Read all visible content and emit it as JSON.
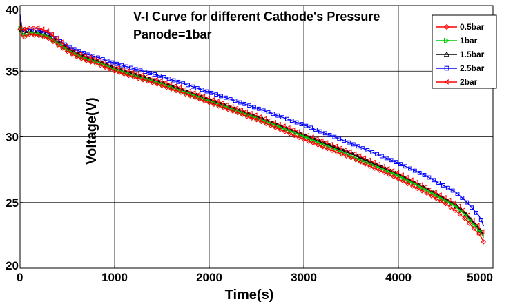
{
  "chart_data": {
    "type": "line",
    "title": "V-I Curve for different Cathode's Pressure",
    "subtitle": "Panode=1bar",
    "xlabel": "Time(s)",
    "ylabel": "Voltage(V)",
    "xlim": [
      0,
      5000
    ],
    "ylim": [
      20,
      40
    ],
    "xticks": [
      "0",
      "1000",
      "2000",
      "3000",
      "4000",
      "5000"
    ],
    "yticks": [
      "20",
      "25",
      "30",
      "35",
      "40"
    ],
    "grid": true,
    "legend_position": "top-right",
    "x": [
      0,
      25,
      50,
      100,
      200,
      300,
      400,
      500,
      600,
      700,
      800,
      1000,
      1500,
      2000,
      2500,
      3000,
      3500,
      4000,
      4300,
      4500,
      4600,
      4700,
      4750,
      4800,
      4850,
      4880,
      4900
    ],
    "series": [
      {
        "name": "0.5bar",
        "color": "#ff0000",
        "marker": "diamond",
        "values": [
          38.2,
          37.6,
          37.6,
          37.8,
          37.7,
          37.5,
          37.0,
          36.5,
          36.1,
          35.8,
          35.6,
          35.0,
          33.9,
          32.6,
          31.3,
          29.8,
          28.4,
          26.8,
          25.7,
          24.9,
          24.4,
          23.8,
          23.4,
          23.0,
          22.6,
          22.3,
          22.0
        ]
      },
      {
        "name": "1bar",
        "color": "#00cc00",
        "marker": "triangle-right",
        "values": [
          38.5,
          37.7,
          37.7,
          37.9,
          37.8,
          37.6,
          37.1,
          36.6,
          36.2,
          35.9,
          35.7,
          35.1,
          34.0,
          32.7,
          31.4,
          30.0,
          28.5,
          27.0,
          25.9,
          25.1,
          24.7,
          24.1,
          23.7,
          23.3,
          22.9,
          22.6,
          22.3
        ]
      },
      {
        "name": "1.5bar",
        "color": "#000000",
        "marker": "triangle-up",
        "values": [
          38.7,
          37.8,
          37.9,
          38.0,
          37.9,
          37.7,
          37.2,
          36.7,
          36.3,
          36.0,
          35.8,
          35.2,
          34.1,
          32.8,
          31.5,
          30.1,
          28.7,
          27.1,
          26.0,
          25.2,
          24.8,
          24.2,
          23.8,
          23.4,
          23.0,
          22.7,
          22.4
        ]
      },
      {
        "name": "2.5bar",
        "color": "#0000ff",
        "marker": "square",
        "values": [
          39.3,
          38.1,
          38.1,
          38.2,
          38.1,
          37.9,
          37.4,
          36.9,
          36.6,
          36.3,
          36.1,
          35.6,
          34.6,
          33.4,
          32.2,
          30.9,
          29.5,
          28.0,
          27.0,
          26.2,
          25.8,
          25.2,
          24.8,
          24.4,
          24.0,
          23.6,
          23.2
        ]
      },
      {
        "name": "2bar",
        "color": "#ff0000",
        "marker": "triangle-left",
        "values": [
          38.9,
          38.2,
          38.2,
          38.3,
          38.3,
          38.0,
          37.4,
          36.8,
          36.4,
          36.1,
          35.9,
          35.3,
          34.2,
          32.9,
          31.6,
          30.2,
          28.8,
          27.2,
          26.1,
          25.3,
          24.9,
          24.3,
          23.9,
          23.5,
          23.1,
          22.8,
          22.5
        ]
      }
    ]
  }
}
